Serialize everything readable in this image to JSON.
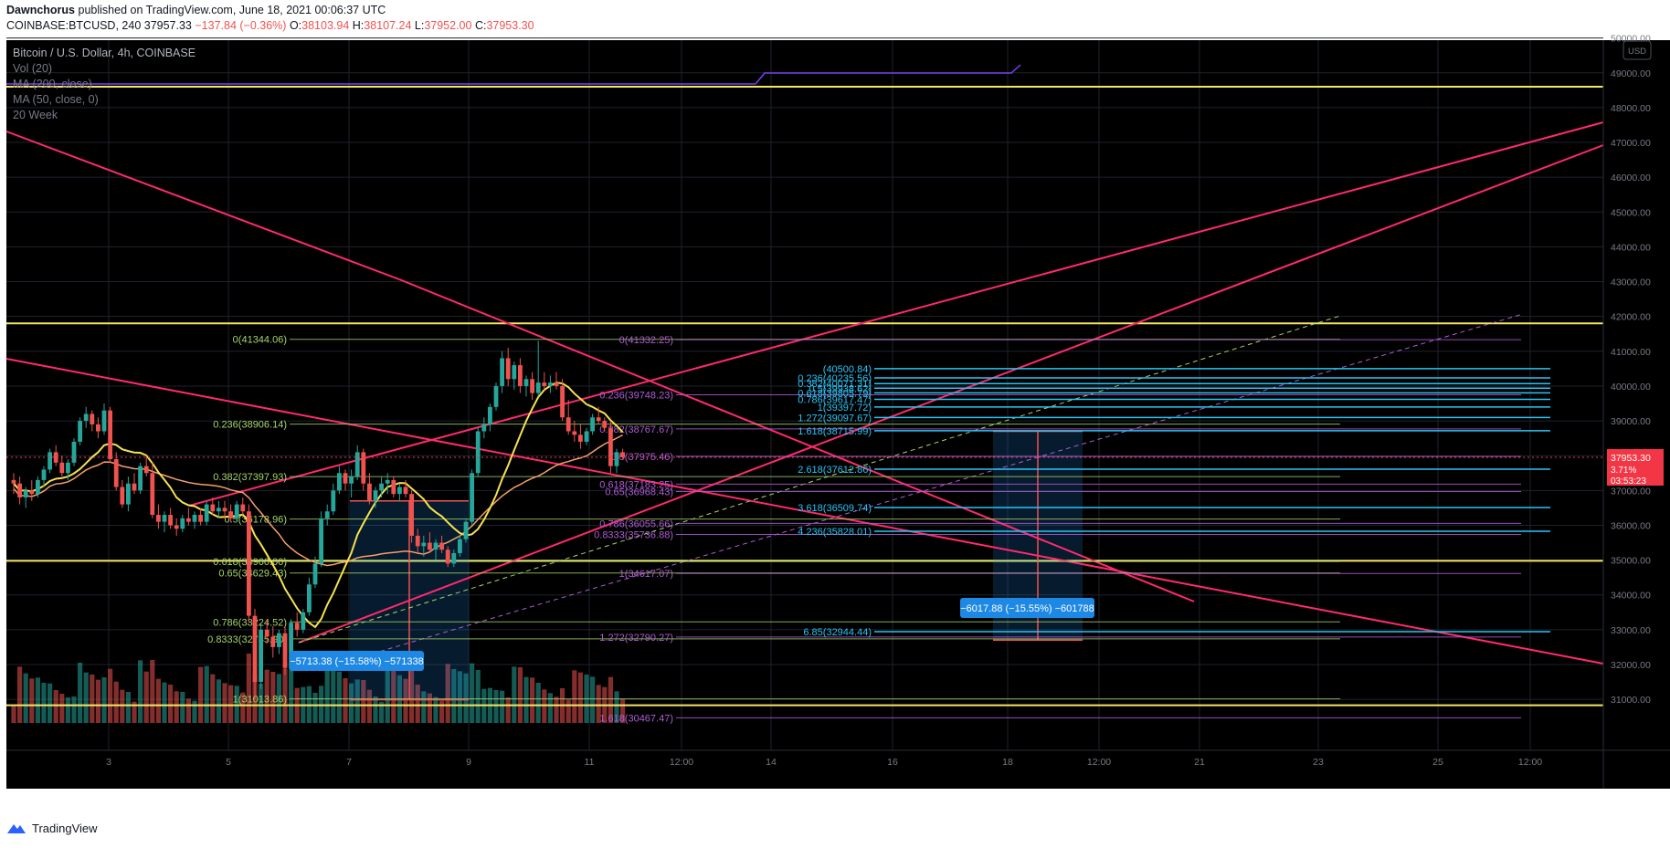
{
  "publish": {
    "author": "Dawnchorus",
    "text": "published on TradingView.com, June 18, 2021 00:06:37 UTC"
  },
  "ohlc": {
    "symbol": "COINBASE:BTCUSD, 240",
    "last": "37957.33",
    "change": "−137.84 (−0.36%)",
    "o_label": "O:",
    "o": "38103.94",
    "h_label": "H:",
    "h": "38107.24",
    "l_label": "L:",
    "l": "37952.00",
    "c_label": "C:",
    "c": "37953.30"
  },
  "legend": {
    "title": "Bitcoin / U.S. Dollar, 4h, COINBASE",
    "lines": [
      "Vol (20)",
      "MA (200, close)",
      "MA (50, close, 0)",
      "20 Week"
    ]
  },
  "footer": {
    "brand": "TradingView"
  },
  "colors": {
    "background": "#000000",
    "grid": "#1e222d",
    "up": "#26a69a",
    "down": "#ef5350",
    "trendline": "#ff2a6d",
    "horizontal": "#f5e663",
    "fib_green": "#a5d66a",
    "fib_purple": "#b05cd6",
    "fib_cyan": "#29c5f6",
    "ma50": "#f7e24f",
    "ma200": "#f5a06a",
    "week20": "#7b3ff2",
    "projection": "#1e88e5",
    "price_label": "#f23645"
  },
  "chart_data": {
    "type": "candlestick",
    "y_axis": {
      "min": 30400,
      "max": 50200,
      "ticks": [
        "50000.00",
        "49000.00",
        "48000.00",
        "47000.00",
        "46000.00",
        "45000.00",
        "44000.00",
        "43000.00",
        "42000.00",
        "41000.00",
        "40000.00",
        "39000.00",
        "38000.00",
        "37000.00",
        "36000.00",
        "35000.00",
        "34000.00",
        "33000.00",
        "32000.00",
        "31000.00"
      ],
      "currency": "USD"
    },
    "x_axis": {
      "ticks": [
        "3",
        "5",
        "7",
        "9",
        "11",
        "12:00",
        "14",
        "16",
        "18",
        "12:00",
        "21",
        "23",
        "25",
        "12:00"
      ]
    },
    "last_price_label": {
      "price": "37953.30",
      "pct": "3.71%",
      "countdown": "03:53:23"
    },
    "horizontal_levels": [
      48600,
      41800,
      34980,
      30830
    ],
    "fib_left": [
      {
        "label": "0(41344.06)",
        "value": 41344.06
      },
      {
        "label": "0.236(38906.14)",
        "value": 38906.14
      },
      {
        "label": "0.382(37397.93)",
        "value": 37397.93
      },
      {
        "label": "0.5(36178.96)",
        "value": 36178.96
      },
      {
        "label": "0.618(34960.00)",
        "value": 34960.0
      },
      {
        "label": "0.65(34629.43)",
        "value": 34629.43
      },
      {
        "label": "0.786(33224.52)",
        "value": 33224.52
      },
      {
        "label": "0.8333(32735.90)",
        "value": 32735.9
      },
      {
        "label": "1(31013.86)",
        "value": 31013.86
      }
    ],
    "fib_mid": [
      {
        "label": "0(41332.25)",
        "value": 41332.25
      },
      {
        "label": "0.236(39748.23)",
        "value": 39748.23
      },
      {
        "label": "0.382(38767.67)",
        "value": 38767.67
      },
      {
        "label": "0.5(37975.46)",
        "value": 37975.46
      },
      {
        "label": "0.618(37183.25)",
        "value": 37183.25
      },
      {
        "label": "0.65(36968.43)",
        "value": 36968.43
      },
      {
        "label": "0.786(36055.66)",
        "value": 36055.66
      },
      {
        "label": "0.8333(35736.88)",
        "value": 35736.88
      },
      {
        "label": "1(34617.07)",
        "value": 34617.07
      },
      {
        "label": "1.272(32790.27)",
        "value": 32790.27
      },
      {
        "label": "1.618(30467.47)",
        "value": 30467.47
      }
    ],
    "fib_right": [
      {
        "label": "(40500.84)",
        "value": 40500.84
      },
      {
        "label": "0.236(40235.56)",
        "value": 40235.56
      },
      {
        "label": "0.382(40071.31)",
        "value": 40071.31
      },
      {
        "label": "0.5(39938.62)",
        "value": 39938.62
      },
      {
        "label": "0.618(39805.79)",
        "value": 39805.79
      },
      {
        "label": "0.786(39617.47)",
        "value": 39617.47
      },
      {
        "label": "1(39397.72)",
        "value": 39397.72
      },
      {
        "label": "1.272(39097.67)",
        "value": 39097.67
      },
      {
        "label": "1.618(38715.99)",
        "value": 38715.99
      },
      {
        "label": "2.618(37612.86)",
        "value": 37612.86
      },
      {
        "label": "3.618(36509.74)",
        "value": 36509.74
      },
      {
        "label": "4.236(35828.01)",
        "value": 35828.01
      },
      {
        "label": "6.85(32944.44)",
        "value": 32944.44
      }
    ],
    "projections": [
      {
        "label": "−5713.38 (−15.58%) −571338",
        "from": 36700,
        "to": 30987
      },
      {
        "label": "−6017.88 (−15.55%) −601788",
        "from": 38700,
        "to": 32700
      }
    ],
    "candles": [
      [
        37300,
        37500,
        36900,
        37200
      ],
      [
        37200,
        37400,
        36600,
        36800
      ],
      [
        36800,
        37100,
        36500,
        37000
      ],
      [
        37000,
        37300,
        36700,
        36900
      ],
      [
        36900,
        37400,
        36800,
        37300
      ],
      [
        37300,
        37700,
        37100,
        37600
      ],
      [
        37600,
        38200,
        37500,
        38100
      ],
      [
        38100,
        38300,
        37700,
        37800
      ],
      [
        37800,
        38000,
        37400,
        37500
      ],
      [
        37500,
        37900,
        37300,
        37800
      ],
      [
        37800,
        38500,
        37700,
        38400
      ],
      [
        38400,
        39100,
        38300,
        39000
      ],
      [
        39000,
        39400,
        38800,
        39200
      ],
      [
        39200,
        39300,
        38700,
        38900
      ],
      [
        38900,
        39100,
        38500,
        38700
      ],
      [
        38700,
        39500,
        38600,
        39300
      ],
      [
        39300,
        39400,
        37800,
        37900
      ],
      [
        37900,
        38100,
        37000,
        37100
      ],
      [
        37100,
        37300,
        36500,
        36600
      ],
      [
        36600,
        37400,
        36400,
        37200
      ],
      [
        37200,
        37500,
        36900,
        37000
      ],
      [
        37000,
        37800,
        36900,
        37700
      ],
      [
        37700,
        38000,
        37400,
        37500
      ],
      [
        37500,
        37800,
        36200,
        36300
      ],
      [
        36300,
        36600,
        35900,
        36100
      ],
      [
        36100,
        36400,
        35800,
        36300
      ],
      [
        36300,
        36500,
        35900,
        36000
      ],
      [
        36000,
        36200,
        35700,
        35900
      ],
      [
        35900,
        36300,
        35800,
        36200
      ],
      [
        36200,
        36500,
        36000,
        36100
      ],
      [
        36100,
        36400,
        35900,
        36300
      ],
      [
        36300,
        36500,
        36000,
        36100
      ],
      [
        36100,
        36700,
        36000,
        36600
      ],
      [
        36600,
        36800,
        36300,
        36400
      ],
      [
        36400,
        36700,
        36200,
        36500
      ],
      [
        36500,
        36700,
        36200,
        36400
      ],
      [
        36400,
        36600,
        36100,
        36200
      ],
      [
        36200,
        36700,
        36100,
        36600
      ],
      [
        36600,
        36800,
        36300,
        36400
      ],
      [
        36400,
        36600,
        33200,
        33400
      ],
      [
        33400,
        33600,
        31000,
        31500
      ],
      [
        31500,
        33200,
        31300,
        33000
      ],
      [
        33000,
        33300,
        32600,
        32800
      ],
      [
        32800,
        33100,
        32200,
        32500
      ],
      [
        32500,
        33000,
        32300,
        32900
      ],
      [
        32900,
        33100,
        31700,
        31900
      ],
      [
        31900,
        33300,
        31800,
        33200
      ],
      [
        33200,
        33500,
        32800,
        33000
      ],
      [
        33000,
        33600,
        32900,
        33500
      ],
      [
        33500,
        34500,
        33400,
        34300
      ],
      [
        34300,
        35100,
        34200,
        34900
      ],
      [
        34900,
        36400,
        34800,
        36200
      ],
      [
        36200,
        36600,
        36000,
        36400
      ],
      [
        36400,
        37200,
        36300,
        37000
      ],
      [
        37000,
        37700,
        36900,
        37500
      ],
      [
        37500,
        37600,
        37000,
        37200
      ],
      [
        37200,
        37600,
        36800,
        37400
      ],
      [
        37400,
        38300,
        37300,
        38100
      ],
      [
        38100,
        38200,
        37000,
        37200
      ],
      [
        37200,
        37500,
        36600,
        36700
      ],
      [
        36700,
        37100,
        36500,
        37000
      ],
      [
        37000,
        37400,
        36800,
        37200
      ],
      [
        37200,
        37500,
        36900,
        37300
      ],
      [
        37300,
        37400,
        36800,
        36900
      ],
      [
        36900,
        37200,
        36700,
        37100
      ],
      [
        37100,
        37300,
        36800,
        36900
      ],
      [
        36900,
        37000,
        35500,
        35700
      ],
      [
        35700,
        35900,
        35200,
        35400
      ],
      [
        35400,
        35700,
        35100,
        35500
      ],
      [
        35500,
        35800,
        35200,
        35300
      ],
      [
        35300,
        35600,
        35000,
        35500
      ],
      [
        35500,
        35700,
        35200,
        35300
      ],
      [
        35300,
        35400,
        34800,
        34900
      ],
      [
        34900,
        35300,
        34800,
        35200
      ],
      [
        35200,
        35700,
        35100,
        35600
      ],
      [
        35600,
        36200,
        35500,
        36100
      ],
      [
        36100,
        37600,
        36000,
        37500
      ],
      [
        37500,
        38800,
        37400,
        38700
      ],
      [
        38700,
        39100,
        38500,
        38900
      ],
      [
        38900,
        39500,
        38700,
        39400
      ],
      [
        39400,
        40100,
        39300,
        40000
      ],
      [
        40000,
        41000,
        39800,
        40800
      ],
      [
        40800,
        41100,
        40000,
        40200
      ],
      [
        40200,
        40700,
        39900,
        40600
      ],
      [
        40600,
        40800,
        39800,
        40000
      ],
      [
        40000,
        40300,
        39700,
        40200
      ],
      [
        40200,
        40400,
        39600,
        39800
      ],
      [
        39800,
        41300,
        39700,
        40100
      ],
      [
        40100,
        40400,
        39900,
        40000
      ],
      [
        40000,
        40300,
        39800,
        40100
      ],
      [
        40100,
        40400,
        39900,
        40000
      ],
      [
        40000,
        40200,
        39000,
        39100
      ],
      [
        39100,
        39600,
        38600,
        38700
      ],
      [
        38700,
        39000,
        38400,
        38600
      ],
      [
        38600,
        38900,
        38200,
        38400
      ],
      [
        38400,
        38800,
        38300,
        38700
      ],
      [
        38700,
        39200,
        38600,
        39100
      ],
      [
        39100,
        39400,
        38900,
        39000
      ],
      [
        39000,
        39100,
        38700,
        38800
      ],
      [
        38800,
        39000,
        37500,
        37700
      ],
      [
        37700,
        38200,
        37500,
        38100
      ],
      [
        38100,
        38200,
        37900,
        37953
      ]
    ]
  }
}
